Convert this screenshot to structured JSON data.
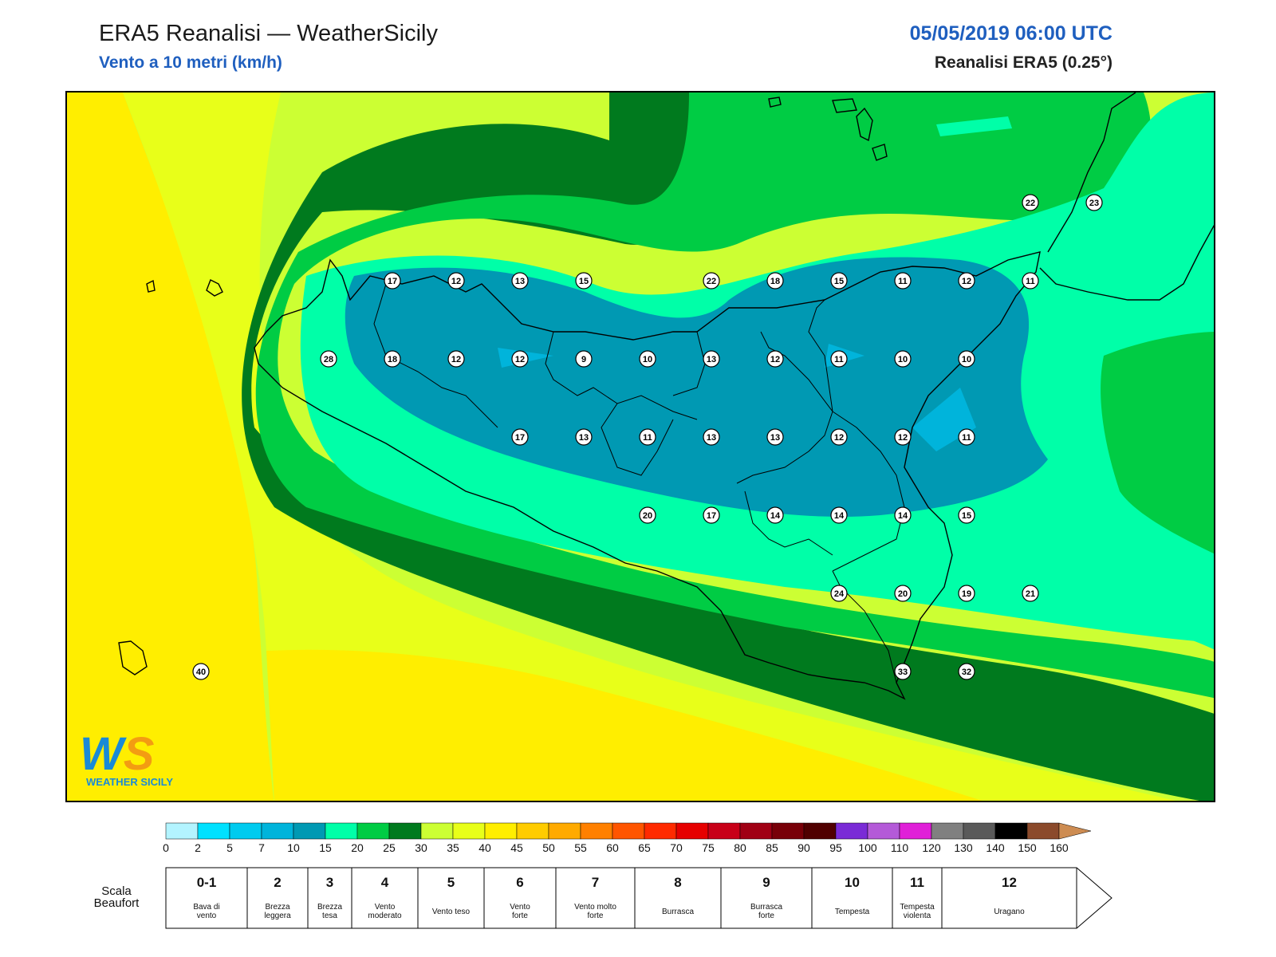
{
  "header": {
    "title": "ERA5 Reanalisi — WeatherSicily",
    "subtitle": "Vento a 10 metri (km/h)",
    "datetime": "05/05/2019 06:00 UTC",
    "product": "Reanalisi ERA5 (0.25°)"
  },
  "map": {
    "stations": [
      {
        "value": "17",
        "lon": 12.75,
        "lat": 38.0
      },
      {
        "value": "12",
        "lon": 13.0,
        "lat": 38.0
      },
      {
        "value": "13",
        "lon": 13.25,
        "lat": 38.0
      },
      {
        "value": "15",
        "lon": 13.5,
        "lat": 38.0
      },
      {
        "value": "22",
        "lon": 14.0,
        "lat": 38.0
      },
      {
        "value": "18",
        "lon": 14.25,
        "lat": 38.0
      },
      {
        "value": "15",
        "lon": 14.5,
        "lat": 38.0
      },
      {
        "value": "11",
        "lon": 14.75,
        "lat": 38.0
      },
      {
        "value": "12",
        "lon": 15.0,
        "lat": 38.0
      },
      {
        "value": "11",
        "lon": 15.25,
        "lat": 38.0
      },
      {
        "value": "22",
        "lon": 15.25,
        "lat": 38.25
      },
      {
        "value": "23",
        "lon": 15.5,
        "lat": 38.25
      },
      {
        "value": "28",
        "lon": 12.5,
        "lat": 37.75
      },
      {
        "value": "18",
        "lon": 12.75,
        "lat": 37.75
      },
      {
        "value": "12",
        "lon": 13.0,
        "lat": 37.75
      },
      {
        "value": "12",
        "lon": 13.25,
        "lat": 37.75
      },
      {
        "value": "9",
        "lon": 13.5,
        "lat": 37.75
      },
      {
        "value": "10",
        "lon": 13.75,
        "lat": 37.75
      },
      {
        "value": "13",
        "lon": 14.0,
        "lat": 37.75
      },
      {
        "value": "12",
        "lon": 14.25,
        "lat": 37.75
      },
      {
        "value": "11",
        "lon": 14.5,
        "lat": 37.75
      },
      {
        "value": "10",
        "lon": 14.75,
        "lat": 37.75
      },
      {
        "value": "10",
        "lon": 15.0,
        "lat": 37.75
      },
      {
        "value": "17",
        "lon": 13.25,
        "lat": 37.5
      },
      {
        "value": "13",
        "lon": 13.5,
        "lat": 37.5
      },
      {
        "value": "11",
        "lon": 13.75,
        "lat": 37.5
      },
      {
        "value": "13",
        "lon": 14.0,
        "lat": 37.5
      },
      {
        "value": "13",
        "lon": 14.25,
        "lat": 37.5
      },
      {
        "value": "12",
        "lon": 14.5,
        "lat": 37.5
      },
      {
        "value": "12",
        "lon": 14.75,
        "lat": 37.5
      },
      {
        "value": "11",
        "lon": 15.0,
        "lat": 37.5
      },
      {
        "value": "20",
        "lon": 13.75,
        "lat": 37.25
      },
      {
        "value": "17",
        "lon": 14.0,
        "lat": 37.25
      },
      {
        "value": "14",
        "lon": 14.25,
        "lat": 37.25
      },
      {
        "value": "14",
        "lon": 14.5,
        "lat": 37.25
      },
      {
        "value": "14",
        "lon": 14.75,
        "lat": 37.25
      },
      {
        "value": "15",
        "lon": 15.0,
        "lat": 37.25
      },
      {
        "value": "24",
        "lon": 14.5,
        "lat": 37.0
      },
      {
        "value": "20",
        "lon": 14.75,
        "lat": 37.0
      },
      {
        "value": "19",
        "lon": 15.0,
        "lat": 37.0
      },
      {
        "value": "21",
        "lon": 15.25,
        "lat": 37.0
      },
      {
        "value": "33",
        "lon": 14.75,
        "lat": 36.75
      },
      {
        "value": "32",
        "lon": 15.0,
        "lat": 36.75
      },
      {
        "value": "40",
        "lon": 12.0,
        "lat": 36.75
      }
    ]
  },
  "logo": {
    "letters": "WS",
    "name": "WEATHER SICILY",
    "colors": {
      "blue": "#1a8ad6",
      "orange": "#f39c12",
      "green": "#6bbf3b"
    }
  },
  "colorbar": {
    "ticks": [
      "0",
      "2",
      "5",
      "7",
      "10",
      "15",
      "20",
      "25",
      "30",
      "35",
      "40",
      "45",
      "50",
      "55",
      "60",
      "65",
      "70",
      "75",
      "80",
      "85",
      "90",
      "95",
      "100",
      "110",
      "120",
      "130",
      "140",
      "150",
      "160"
    ],
    "colors": [
      "#b3f4ff",
      "#00e1ff",
      "#00cbef",
      "#00b4db",
      "#0099b3",
      "#00ffa8",
      "#00cc44",
      "#007a1e",
      "#ccff33",
      "#e8ff19",
      "#ffee00",
      "#ffcc00",
      "#ffaa00",
      "#ff8000",
      "#ff5500",
      "#ff2a00",
      "#e60000",
      "#c80018",
      "#a00014",
      "#780008",
      "#500000",
      "#7a2bd6",
      "#b45ad8",
      "#e020d8",
      "#808080",
      "#5a5a5a",
      "#000000",
      "#8b4a2b",
      "#cd8c52"
    ]
  },
  "beaufort": {
    "label": "Scala\nBeaufort",
    "classes": [
      {
        "num": "0-1",
        "desc": [
          "Bava di",
          "vento"
        ]
      },
      {
        "num": "2",
        "desc": [
          "Brezza",
          "leggera"
        ]
      },
      {
        "num": "3",
        "desc": [
          "Brezza",
          "tesa"
        ]
      },
      {
        "num": "4",
        "desc": [
          "Vento",
          "moderato"
        ]
      },
      {
        "num": "5",
        "desc": [
          "Vento teso"
        ]
      },
      {
        "num": "6",
        "desc": [
          "Vento",
          "forte"
        ]
      },
      {
        "num": "7",
        "desc": [
          "Vento molto",
          "forte"
        ]
      },
      {
        "num": "8",
        "desc": [
          "Burrasca"
        ]
      },
      {
        "num": "9",
        "desc": [
          "Burrasca",
          "forte"
        ]
      },
      {
        "num": "10",
        "desc": [
          "Tempesta"
        ]
      },
      {
        "num": "11",
        "desc": [
          "Tempesta",
          "violenta"
        ]
      },
      {
        "num": "12",
        "desc": [
          "Uragano"
        ]
      }
    ]
  }
}
